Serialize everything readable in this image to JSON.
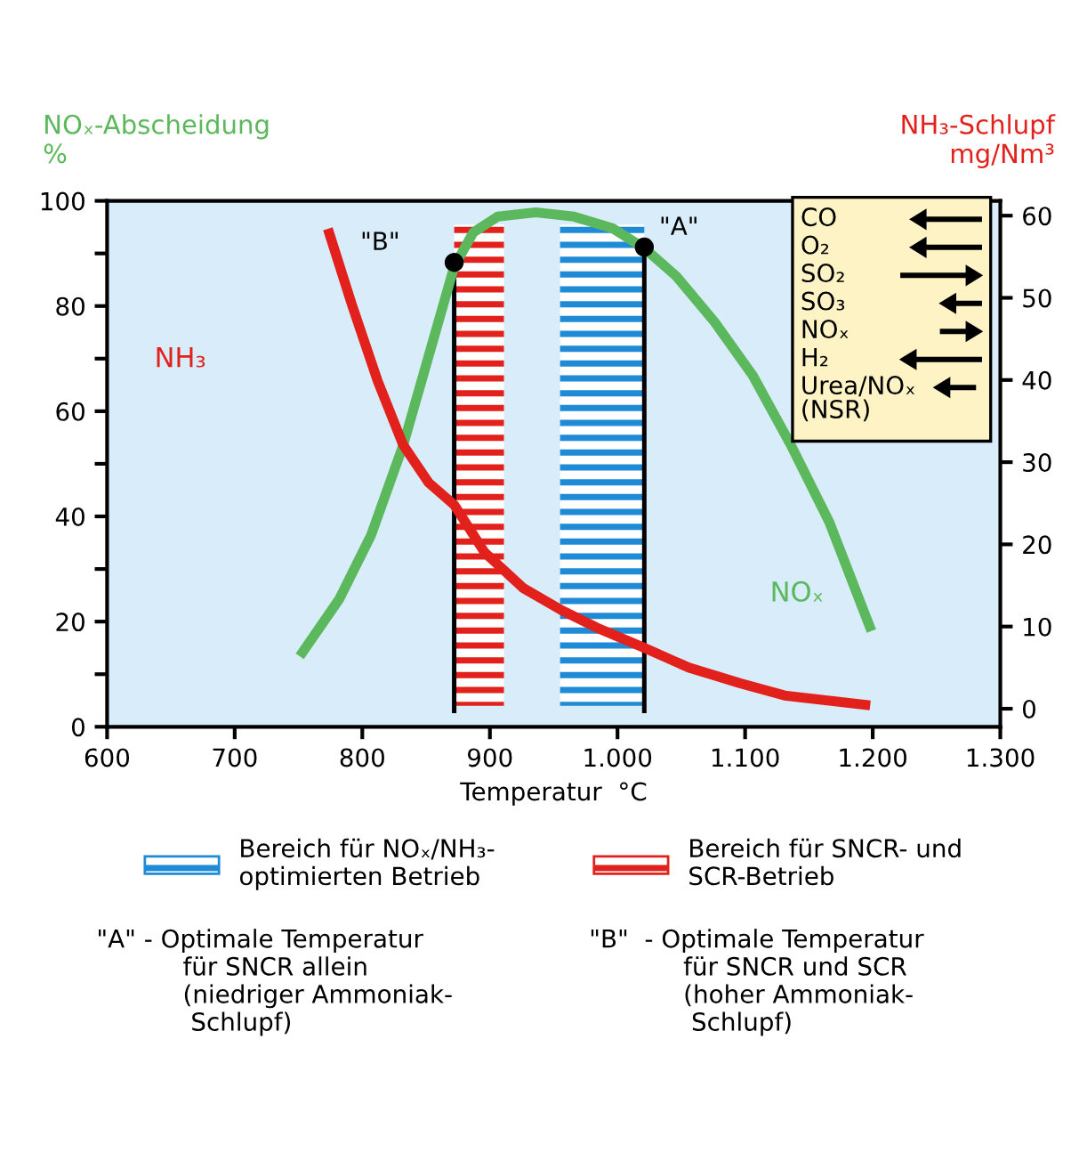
{
  "chart_data": {
    "type": "line",
    "xlabel": "Temperatur  °C",
    "ylabel": "NOₓ-Abscheidung\n%",
    "y2label": "NH₃-Schlupf\nmg/Nm³",
    "xlim": [
      600,
      1300
    ],
    "xticks": [
      600,
      700,
      800,
      900,
      {
        "value": 1000,
        "label": "1.000"
      },
      {
        "value": 1100,
        "label": "1.100"
      },
      {
        "value": 1200,
        "label": "1.200"
      },
      {
        "value": 1300,
        "label": "1.300"
      }
    ],
    "ylim": [
      0,
      100
    ],
    "yticks": [
      0,
      {
        "value": 10,
        "label": null
      },
      20,
      {
        "value": 30,
        "label": null
      },
      40,
      {
        "value": 50,
        "label": null
      },
      60,
      {
        "value": 70,
        "label": null
      },
      80,
      {
        "value": 90,
        "label": null
      },
      100
    ],
    "y2lim": [
      -2.2,
      61.8
    ],
    "y2ticks": [
      0,
      10,
      20,
      30,
      40,
      50,
      60
    ],
    "series": [
      {
        "name": "NOₓ",
        "color": "#5cb85c",
        "x": [
          751,
          782,
          807,
          832,
          852,
          872,
          887,
          906,
          936,
          966,
          996,
          1021,
          1046,
          1076,
          1106,
          1136,
          1166,
          1199
        ],
        "values": [
          13.4,
          24.3,
          36.5,
          53.5,
          70.5,
          87.5,
          94,
          97,
          97.8,
          97,
          94.8,
          91,
          85.7,
          77,
          66.8,
          53.5,
          38.9,
          18.2
        ]
      },
      {
        "name": "NH₃",
        "color": "#e3211c",
        "axis": "y2",
        "x": [
          773,
          792,
          812,
          832,
          852,
          872,
          896,
          926,
          956,
          986,
          1021,
          1056,
          1096,
          1131,
          1198
        ],
        "values": [
          58.4,
          49.1,
          39.9,
          32.1,
          27.5,
          24.8,
          19,
          14.7,
          12,
          9.7,
          7.4,
          5,
          3.1,
          1.6,
          0.4
        ]
      },
      {
        "type": "lollipop",
        "color": "#000000",
        "x": [
          872,
          1021
        ],
        "values": [
          88.3,
          91.2
        ]
      }
    ],
    "bands": [
      {
        "axis": "x",
        "from": 955,
        "to": 1021,
        "color": "#1f8ad6",
        "label": "Bereich für NOₓ/NH₃-\noptimierten Betrieb"
      },
      {
        "axis": "x",
        "from": 872,
        "to": 911,
        "color": "#e3211c",
        "label": "Bereich für SNCR- und\nSCR-Betrieb"
      }
    ],
    "annotations": [
      "CO",
      "O₂",
      "SO₂",
      "SO₃",
      "NOₓ",
      "H₂",
      "Urea/NOₓ\n(NSR)",
      {
        "text": "\"B\"",
        "x": 872,
        "y": 88.3
      },
      {
        "text": "\"A\"",
        "x": 1021,
        "y": 91.2
      },
      "\"A\" - Optimale Temperatur\n           für SNCR allein\n           (niedriger Ammoniak-\n            Schlupf)",
      "\"B\"  - Optimale Temperatur\n            für SNCR und SCR\n            (hoher Ammoniak-\n             Schlupf)"
    ],
    "legend": "bottom",
    "grid": false,
    "line_style": "solid"
  }
}
